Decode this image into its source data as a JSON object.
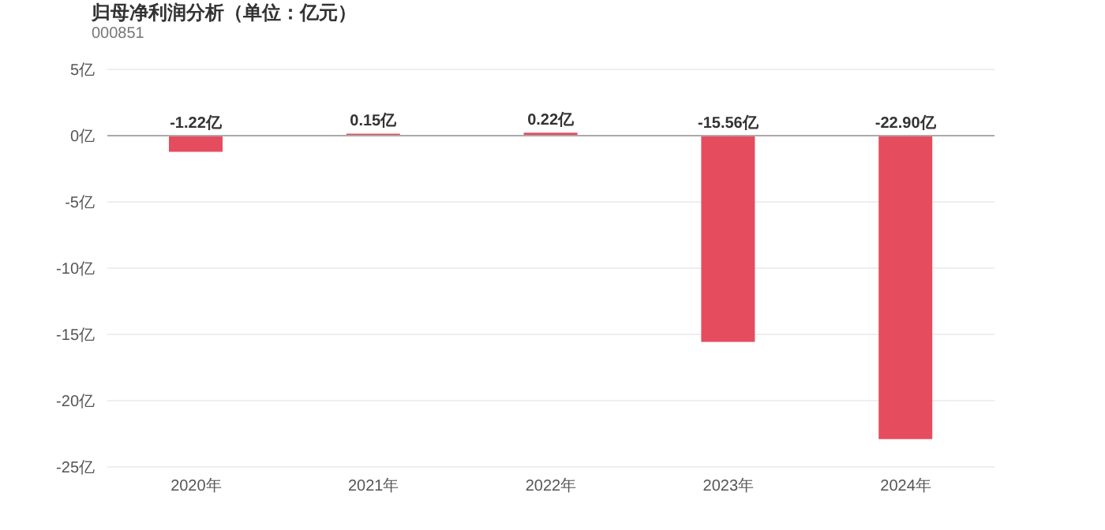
{
  "chart_data": {
    "type": "bar",
    "title": "归母净利润分析（单位：亿元）",
    "subtitle": "000851",
    "categories": [
      "2020年",
      "2021年",
      "2022年",
      "2023年",
      "2024年"
    ],
    "values": [
      -1.22,
      0.15,
      0.22,
      -15.56,
      -22.9
    ],
    "value_labels": [
      "-1.22亿",
      "0.15亿",
      "0.22亿",
      "-15.56亿",
      "-22.90亿"
    ],
    "color": "#e54d5f",
    "ylim": [
      -25,
      5
    ],
    "yticks": [
      {
        "value": 5,
        "label": "5亿"
      },
      {
        "value": 0,
        "label": "0亿"
      },
      {
        "value": -5,
        "label": "-5亿"
      },
      {
        "value": -10,
        "label": "-10亿"
      },
      {
        "value": -15,
        "label": "-15亿"
      },
      {
        "value": -20,
        "label": "-20亿"
      },
      {
        "value": -25,
        "label": "-25亿"
      }
    ],
    "ref_lines": [
      {
        "axis": "y",
        "value": 0,
        "color": "#aaaaaa"
      }
    ],
    "grid": "y",
    "legend": false
  }
}
